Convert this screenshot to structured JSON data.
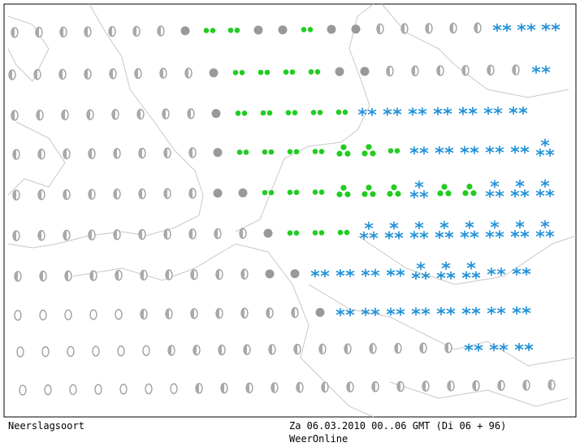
{
  "footer": {
    "left": "Neerslagsoort",
    "datetime": "Za 06.03.2010 00..06 GMT (Di 06 + 96)",
    "source": "WeerOnline"
  }
}
